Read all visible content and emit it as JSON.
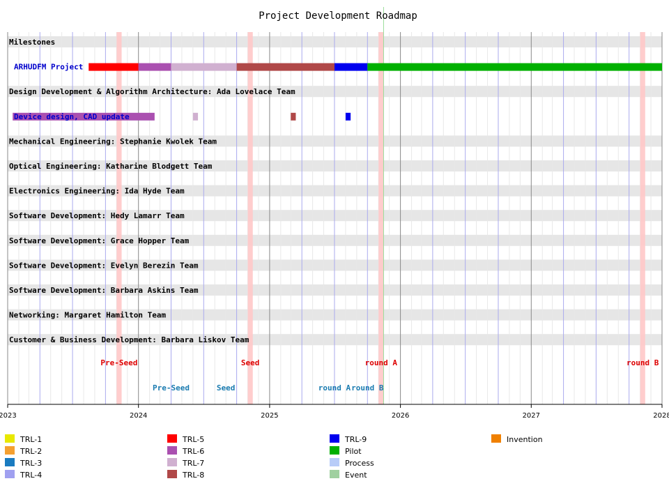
{
  "chart_data": {
    "type": "gantt",
    "title": "Project Development Roadmap",
    "x_axis": {
      "type": "date",
      "range": [
        "2023-01-01",
        "2028-01-01"
      ],
      "ticks": [
        "2023",
        "2024",
        "2025",
        "2026",
        "2027",
        "2028"
      ],
      "minor_gridlines": "monthly",
      "quarter_lines": true
    },
    "today_marker": "2025-11-15",
    "highlight_bands": [
      {
        "start": "2023-11-01",
        "end": "2023-11-15"
      },
      {
        "start": "2024-11-01",
        "end": "2024-11-15"
      },
      {
        "start": "2025-11-01",
        "end": "2025-11-15"
      },
      {
        "start": "2027-11-01",
        "end": "2027-11-15"
      }
    ],
    "lanes": [
      {
        "label": "Milestones"
      },
      {
        "label": "ARHUDFM Project",
        "type": "bar-row",
        "segments": [
          {
            "start": "2023-08-15",
            "end": "2024-01-01",
            "stage": "TRL-5"
          },
          {
            "start": "2024-01-01",
            "end": "2024-04-01",
            "stage": "TRL-6"
          },
          {
            "start": "2024-04-01",
            "end": "2024-10-01",
            "stage": "TRL-7"
          },
          {
            "start": "2024-10-01",
            "end": "2025-07-01",
            "stage": "TRL-8"
          },
          {
            "start": "2025-07-01",
            "end": "2025-10-01",
            "stage": "TRL-9"
          },
          {
            "start": "2025-10-01",
            "end": "2028-01-01",
            "stage": "Pilot"
          }
        ]
      },
      {
        "label": "Design Development & Algorithm Architecture: Ada Lovelace Team"
      },
      {
        "label": "Device design, CAD update",
        "type": "bar-row",
        "segments": [
          {
            "start": "2023-01-15",
            "end": "2024-02-15",
            "stage": "TRL-6"
          },
          {
            "start": "2024-06-01",
            "end": "2024-06-15",
            "stage": "TRL-7"
          },
          {
            "start": "2025-03-01",
            "end": "2025-03-15",
            "stage": "TRL-8"
          },
          {
            "start": "2025-08-01",
            "end": "2025-08-15",
            "stage": "TRL-9"
          }
        ]
      },
      {
        "label": "Mechanical Engineering: Stephanie Kwolek Team"
      },
      {
        "label": "Optical Engineering: Katharine Blodgett Team"
      },
      {
        "label": "Electronics Engineering: Ida Hyde Team"
      },
      {
        "label": "Software Development: Hedy Lamarr Team"
      },
      {
        "label": "Software Development: Grace Hopper Team"
      },
      {
        "label": "Software Development: Evelyn Berezin Team"
      },
      {
        "label": "Software Development: Barbara Askins Team"
      },
      {
        "label": "Networking: Margaret Hamilton Team"
      },
      {
        "label": "Customer & Business Development: Barbara Liskov Team"
      }
    ],
    "events_row1": [
      {
        "label": "Pre-Seed",
        "date": "2023-11-08",
        "color": "#dd0000"
      },
      {
        "label": "Seed",
        "date": "2024-11-08",
        "color": "#dd0000"
      },
      {
        "label": "round A",
        "date": "2025-11-08",
        "color": "#dd0000"
      },
      {
        "label": "round B",
        "date": "2027-11-08",
        "color": "#dd0000"
      }
    ],
    "events_row2": [
      {
        "label": "Pre-Seed",
        "date": "2024-04-01",
        "color": "#1a7bb0"
      },
      {
        "label": "Seed",
        "date": "2024-09-01",
        "color": "#1a7bb0"
      },
      {
        "label": "round A",
        "date": "2025-07-01",
        "color": "#1a7bb0"
      },
      {
        "label": "round B",
        "date": "2025-10-01",
        "color": "#1a7bb0"
      }
    ],
    "legend": [
      {
        "name": "TRL-1",
        "color": "#e8e800"
      },
      {
        "name": "TRL-2",
        "color": "#f5a030"
      },
      {
        "name": "TRL-3",
        "color": "#1a7bc0"
      },
      {
        "name": "TRL-4",
        "color": "#a0a0f0"
      },
      {
        "name": "TRL-5",
        "color": "#ff0000"
      },
      {
        "name": "TRL-6",
        "color": "#aa50b0"
      },
      {
        "name": "TRL-7",
        "color": "#d0b0d0"
      },
      {
        "name": "TRL-8",
        "color": "#b04848"
      },
      {
        "name": "TRL-9",
        "color": "#0000ee"
      },
      {
        "name": "Pilot",
        "color": "#00b000"
      },
      {
        "name": "Process",
        "color": "#b8ccf8"
      },
      {
        "name": "Event",
        "color": "#a0d0a0"
      },
      {
        "name": "Invention",
        "color": "#f08000"
      }
    ]
  }
}
